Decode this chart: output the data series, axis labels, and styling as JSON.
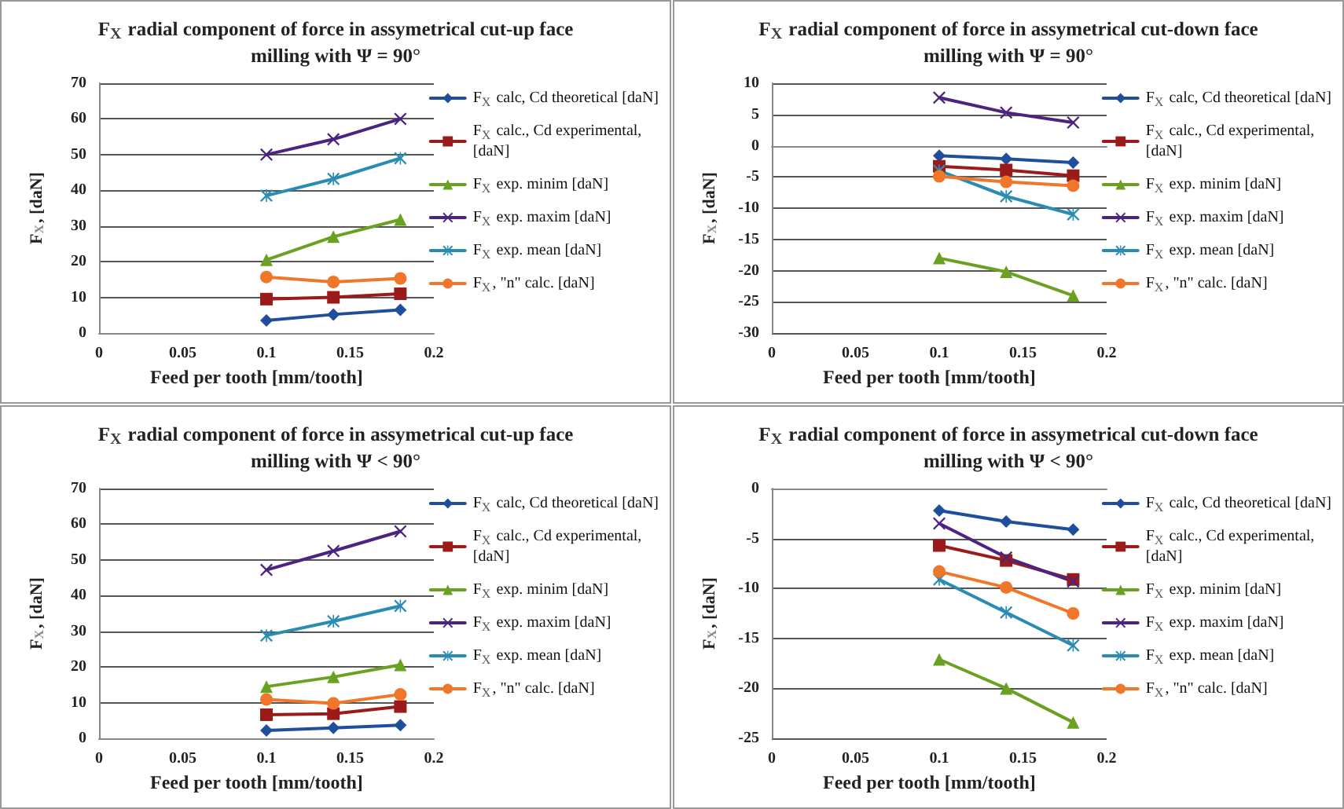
{
  "chart_data": [
    {
      "type": "line",
      "title": "F$_{X}$ radial component of force in assymetrical cut-up face milling with Ψ = 90°",
      "xlabel": "Feed per tooth [mm/tooth]",
      "ylabel": "F$_{X}$, [daN]",
      "x": [
        0.1,
        0.14,
        0.18
      ],
      "xlim": [
        0,
        0.2
      ],
      "xticks": [
        0,
        0.05,
        0.1,
        0.15,
        0.2
      ],
      "ylim": [
        0,
        70
      ],
      "yticks": [
        0,
        10,
        20,
        30,
        40,
        50,
        60,
        70
      ],
      "grid": "y",
      "legend": "right",
      "series": [
        {
          "name": "F$_{X}$ calc, Cd theoretical [daN]",
          "color": "#1f4e9b",
          "marker": "diamond",
          "values": [
            3.5,
            5.2,
            6.5
          ]
        },
        {
          "name": "F$_{X}$ calc., Cd experimental, [daN]",
          "color": "#9b1b1b",
          "marker": "square",
          "values": [
            9.5,
            10,
            11
          ]
        },
        {
          "name": "F$_{X}$ exp. minim [daN]",
          "color": "#6aa121",
          "marker": "triangle",
          "values": [
            20.5,
            27,
            31.8
          ]
        },
        {
          "name": "F$_{X}$ exp. maxim [daN]",
          "color": "#4b2380",
          "marker": "cross",
          "values": [
            50,
            54.3,
            60
          ]
        },
        {
          "name": "F$_{X}$ exp. mean [daN]",
          "color": "#2b8cb3",
          "marker": "star",
          "values": [
            38.5,
            43.2,
            49
          ]
        },
        {
          "name": "F$_{X}$, \"n\" calc. [daN]",
          "color": "#f0772a",
          "marker": "circle",
          "values": [
            15.7,
            14.3,
            15.3
          ]
        }
      ]
    },
    {
      "type": "line",
      "title": "F$_{X}$ radial component of force in assymetrical cut-down face milling with Ψ = 90°",
      "xlabel": "Feed per tooth [mm/tooth]",
      "ylabel": "F$_{X}$, [daN]",
      "x": [
        0.1,
        0.14,
        0.18
      ],
      "xlim": [
        0,
        0.2
      ],
      "xticks": [
        0,
        0.05,
        0.1,
        0.15,
        0.2
      ],
      "ylim": [
        -30,
        10
      ],
      "yticks": [
        -30,
        -25,
        -20,
        -15,
        -10,
        -5,
        0,
        5,
        10
      ],
      "grid": "y",
      "legend": "right",
      "series": [
        {
          "name": "F$_{X}$ calc, Cd theoretical [daN]",
          "color": "#1f4e9b",
          "marker": "diamond",
          "values": [
            -1.6,
            -2.1,
            -2.7
          ]
        },
        {
          "name": "F$_{X}$ calc., Cd experimental, [daN]",
          "color": "#9b1b1b",
          "marker": "square",
          "values": [
            -3.3,
            -3.9,
            -4.8
          ]
        },
        {
          "name": "F$_{X}$ exp. minim [daN]",
          "color": "#6aa121",
          "marker": "triangle",
          "values": [
            -18,
            -20.2,
            -24
          ]
        },
        {
          "name": "F$_{X}$ exp. maxim [daN]",
          "color": "#4b2380",
          "marker": "cross",
          "values": [
            7.7,
            5.3,
            3.7
          ]
        },
        {
          "name": "F$_{X}$ exp. mean [daN]",
          "color": "#2b8cb3",
          "marker": "star",
          "values": [
            -4,
            -8.1,
            -11
          ]
        },
        {
          "name": "F$_{X}$, \"n\" calc. [daN]",
          "color": "#f0772a",
          "marker": "circle",
          "values": [
            -4.9,
            -5.8,
            -6.4
          ]
        }
      ]
    },
    {
      "type": "line",
      "title": "F$_{X}$ radial component of force in assymetrical cut-up face milling with Ψ < 90°",
      "xlabel": "Feed per tooth [mm/tooth]",
      "ylabel": "F$_{X}$, [daN]",
      "x": [
        0.1,
        0.14,
        0.18
      ],
      "xlim": [
        0,
        0.2
      ],
      "xticks": [
        0,
        0.05,
        0.1,
        0.15,
        0.2
      ],
      "ylim": [
        0,
        70
      ],
      "yticks": [
        0,
        10,
        20,
        30,
        40,
        50,
        60,
        70
      ],
      "grid": "y",
      "legend": "right",
      "series": [
        {
          "name": "F$_{X}$ calc, Cd theoretical [daN]",
          "color": "#1f4e9b",
          "marker": "diamond",
          "values": [
            2.2,
            2.9,
            3.7
          ]
        },
        {
          "name": "F$_{X}$ calc., Cd experimental, [daN]",
          "color": "#9b1b1b",
          "marker": "square",
          "values": [
            6.6,
            6.9,
            8.9
          ]
        },
        {
          "name": "F$_{X}$ exp. minim [daN]",
          "color": "#6aa121",
          "marker": "triangle",
          "values": [
            14.5,
            17.2,
            20.6
          ]
        },
        {
          "name": "F$_{X}$ exp. maxim [daN]",
          "color": "#4b2380",
          "marker": "cross",
          "values": [
            47.2,
            52.5,
            58
          ]
        },
        {
          "name": "F$_{X}$ exp. mean [daN]",
          "color": "#2b8cb3",
          "marker": "star",
          "values": [
            28.8,
            32.8,
            37.1
          ]
        },
        {
          "name": "F$_{X}$, \"n\" calc. [daN]",
          "color": "#f0772a",
          "marker": "circle",
          "values": [
            10.9,
            9.8,
            12.3
          ]
        }
      ]
    },
    {
      "type": "line",
      "title": "F$_{X}$ radial component of force in assymetrical cut-down face milling with Ψ < 90°",
      "xlabel": "Feed per tooth [mm/tooth]",
      "ylabel": "F$_{X}$, [daN]",
      "x": [
        0.1,
        0.14,
        0.18
      ],
      "xlim": [
        0,
        0.2
      ],
      "xticks": [
        0,
        0.05,
        0.1,
        0.15,
        0.2
      ],
      "ylim": [
        -25,
        0
      ],
      "yticks": [
        -25,
        -20,
        -15,
        -10,
        -5,
        0
      ],
      "grid": "y",
      "legend": "right",
      "series": [
        {
          "name": "F$_{X}$ calc, Cd theoretical [daN]",
          "color": "#1f4e9b",
          "marker": "diamond",
          "values": [
            -2.2,
            -3.3,
            -4.1
          ]
        },
        {
          "name": "F$_{X}$ calc., Cd experimental, [daN]",
          "color": "#9b1b1b",
          "marker": "square",
          "values": [
            -5.7,
            -7.2,
            -9.1
          ]
        },
        {
          "name": "F$_{X}$ exp. minim [daN]",
          "color": "#6aa121",
          "marker": "triangle",
          "values": [
            -17.1,
            -20,
            -23.4
          ]
        },
        {
          "name": "F$_{X}$ exp. maxim [daN]",
          "color": "#4b2380",
          "marker": "cross",
          "values": [
            -3.5,
            -6.9,
            -9.3
          ]
        },
        {
          "name": "F$_{X}$ exp. mean [daN]",
          "color": "#2b8cb3",
          "marker": "star",
          "values": [
            -9.1,
            -12.4,
            -15.7
          ]
        },
        {
          "name": "F$_{X}$, \"n\" calc. [daN]",
          "color": "#f0772a",
          "marker": "circle",
          "values": [
            -8.3,
            -9.9,
            -12.5
          ]
        }
      ]
    }
  ]
}
